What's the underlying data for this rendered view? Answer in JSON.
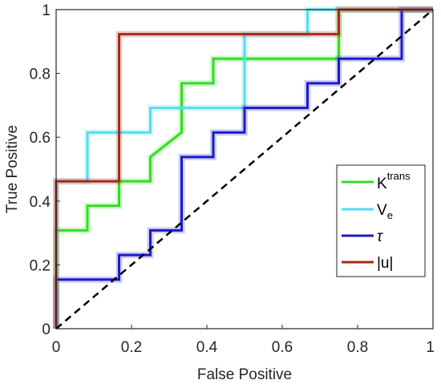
{
  "chart_data": {
    "type": "line",
    "title": "",
    "xlabel": "False Positive",
    "ylabel": "True Positive",
    "xlim": [
      0,
      1
    ],
    "ylim": [
      0,
      1
    ],
    "x_ticks": [
      "0",
      "0.2",
      "0.4",
      "0.6",
      "0.8",
      "1"
    ],
    "y_ticks": [
      "0",
      "0.2",
      "0.4",
      "0.6",
      "0.8",
      "1"
    ],
    "grid": false,
    "legend_position": "right",
    "diagonal": {
      "style": "dashed",
      "color": "#000000",
      "points": [
        [
          0,
          0
        ],
        [
          1,
          1
        ]
      ]
    },
    "series": [
      {
        "name": "K",
        "name_sup": "trans",
        "color": "#33dd22",
        "points": [
          [
            0,
            0
          ],
          [
            0,
            0.308
          ],
          [
            0.083,
            0.308
          ],
          [
            0.083,
            0.385
          ],
          [
            0.167,
            0.385
          ],
          [
            0.167,
            0.462
          ],
          [
            0.25,
            0.462
          ],
          [
            0.25,
            0.538
          ],
          [
            0.333,
            0.615
          ],
          [
            0.333,
            0.769
          ],
          [
            0.417,
            0.769
          ],
          [
            0.417,
            0.846
          ],
          [
            0.5,
            0.846
          ],
          [
            0.75,
            0.846
          ],
          [
            0.75,
            1
          ],
          [
            1,
            1
          ]
        ]
      },
      {
        "name": "V",
        "name_sub": "e",
        "color": "#55ddee",
        "points": [
          [
            0,
            0
          ],
          [
            0,
            0.462
          ],
          [
            0.083,
            0.462
          ],
          [
            0.083,
            0.615
          ],
          [
            0.25,
            0.615
          ],
          [
            0.25,
            0.692
          ],
          [
            0.5,
            0.692
          ],
          [
            0.5,
            0.923
          ],
          [
            0.667,
            0.923
          ],
          [
            0.667,
            1
          ],
          [
            1,
            1
          ]
        ]
      },
      {
        "name": "τ",
        "color": "#1a1acc",
        "points": [
          [
            0,
            0
          ],
          [
            0,
            0.154
          ],
          [
            0.167,
            0.154
          ],
          [
            0.167,
            0.231
          ],
          [
            0.25,
            0.231
          ],
          [
            0.25,
            0.308
          ],
          [
            0.333,
            0.308
          ],
          [
            0.333,
            0.538
          ],
          [
            0.417,
            0.538
          ],
          [
            0.417,
            0.615
          ],
          [
            0.5,
            0.615
          ],
          [
            0.5,
            0.692
          ],
          [
            0.667,
            0.692
          ],
          [
            0.667,
            0.769
          ],
          [
            0.75,
            0.769
          ],
          [
            0.75,
            0.846
          ],
          [
            0.917,
            0.846
          ],
          [
            0.917,
            1
          ],
          [
            1,
            1
          ]
        ]
      },
      {
        "name": "|u|",
        "color": "#a52a1a",
        "points": [
          [
            0,
            0
          ],
          [
            0,
            0.462
          ],
          [
            0.167,
            0.462
          ],
          [
            0.167,
            0.923
          ],
          [
            0.75,
            0.923
          ],
          [
            0.75,
            1
          ],
          [
            1,
            1
          ]
        ]
      }
    ]
  }
}
